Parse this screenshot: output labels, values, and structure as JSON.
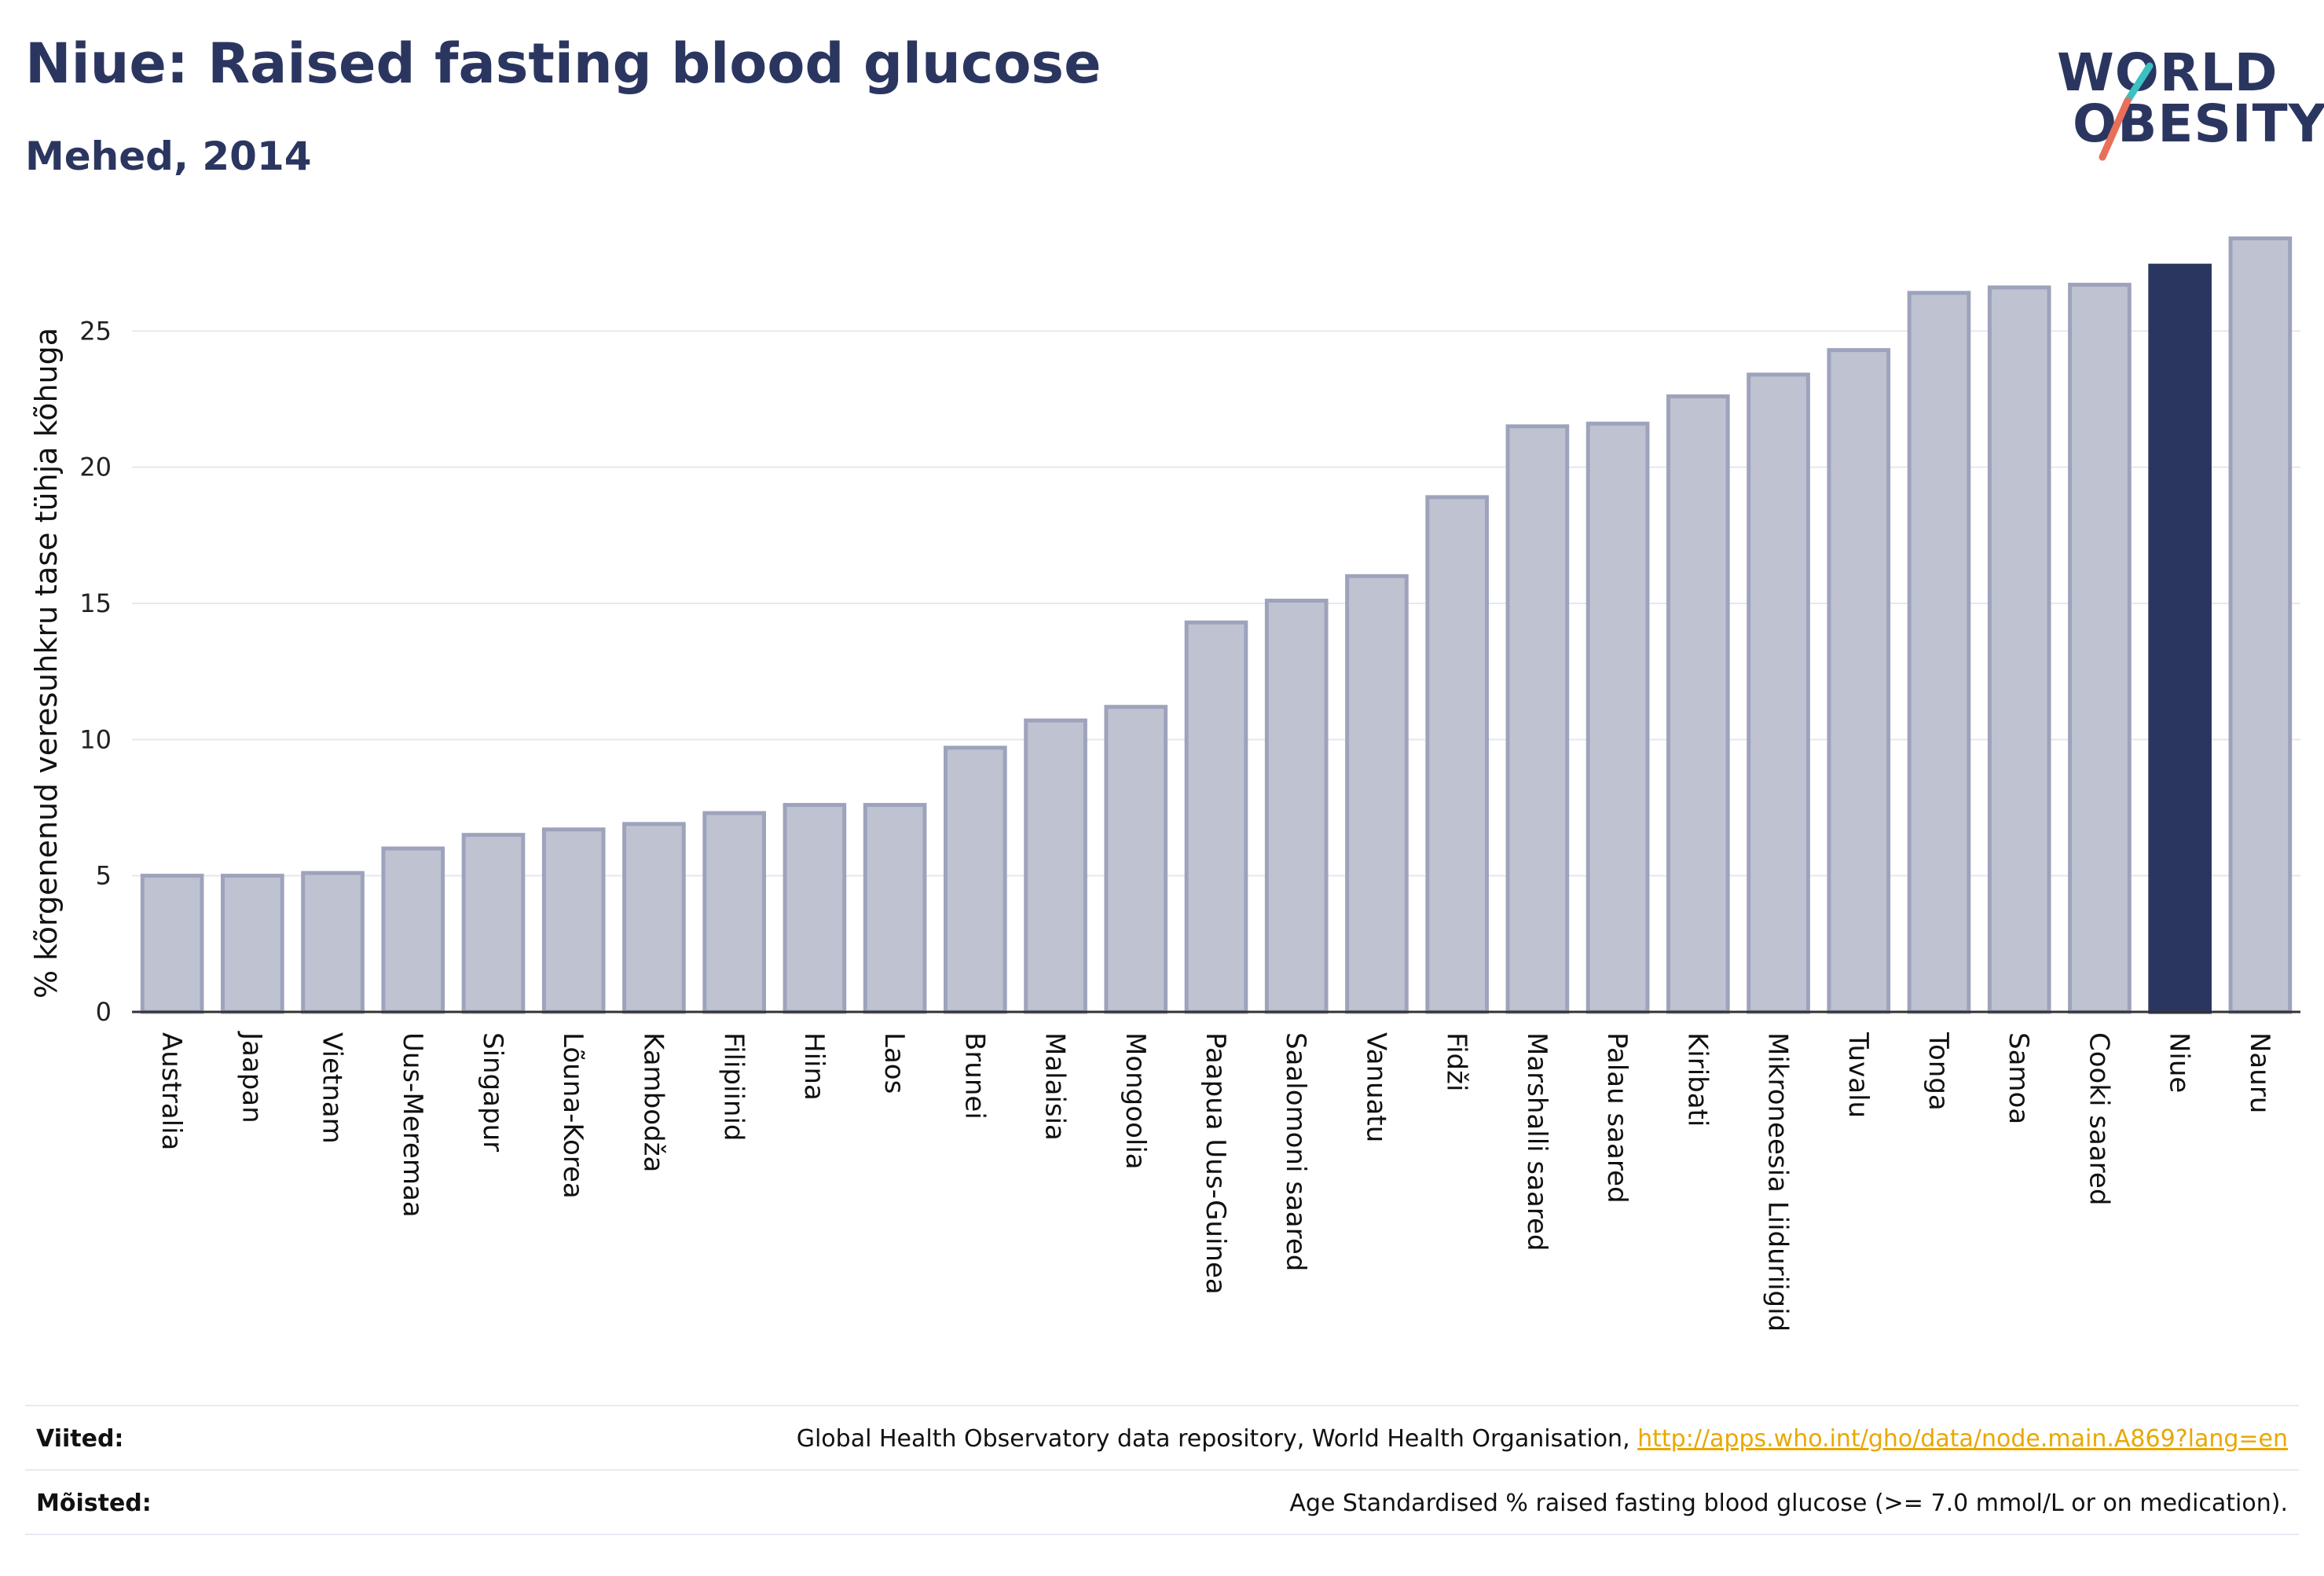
{
  "header": {
    "title": "Niue: Raised fasting blood glucose",
    "subtitle": "Mehed, 2014"
  },
  "logo": {
    "line1": "WORLD",
    "line2": "OBESITY",
    "colors": {
      "text": "#2b3660",
      "slash_top": "#3cc0c2",
      "slash_bottom": "#e8705a"
    }
  },
  "chart_data": {
    "type": "bar",
    "ylabel": "% kõrgenenud veresuhkru tase tühja kõhuga",
    "xlabel": "",
    "ylim": [
      0,
      28.5
    ],
    "yticks": [
      0,
      5,
      10,
      15,
      20,
      25
    ],
    "grid": true,
    "categories": [
      "Australia",
      "Jaapan",
      "Vietnam",
      "Uus-Meremaa",
      "Singapur",
      "Lõuna-Korea",
      "Kambodža",
      "Filipiinid",
      "Hiina",
      "Laos",
      "Brunei",
      "Malaisia",
      "Mongoolia",
      "Paapua Uus-Guinea",
      "Saalomoni saared",
      "Vanuatu",
      "Fidži",
      "Marshalli saared",
      "Palau saared",
      "Kiribati",
      "Mikroneesia Liiduriigid",
      "Tuvalu",
      "Tonga",
      "Samoa",
      "Cooki saared",
      "Niue",
      "Nauru"
    ],
    "values": [
      5.0,
      5.0,
      5.1,
      6.0,
      6.5,
      6.7,
      6.9,
      7.3,
      7.6,
      7.6,
      9.7,
      10.7,
      11.2,
      14.3,
      15.1,
      16.0,
      18.9,
      21.5,
      21.6,
      22.6,
      23.4,
      24.3,
      26.4,
      26.6,
      26.7,
      27.4,
      28.4
    ],
    "highlight": "Niue",
    "colors": {
      "bar": "#bfc3d1",
      "bar_edge": "#9da3bb",
      "highlight": "#2b3660",
      "grid": "#e6e8ef",
      "axis": "#333333"
    }
  },
  "footer": {
    "sources_label": "Viited:",
    "sources_text": "Global Health Observatory data repository, World Health Organisation, ",
    "sources_link": "http://apps.who.int/gho/data/node.main.A869?lang=en",
    "definitions_label": "Mõisted:",
    "definitions_text": "Age Standardised % raised fasting blood glucose (>= 7.0 mmol/L or on medication)."
  }
}
